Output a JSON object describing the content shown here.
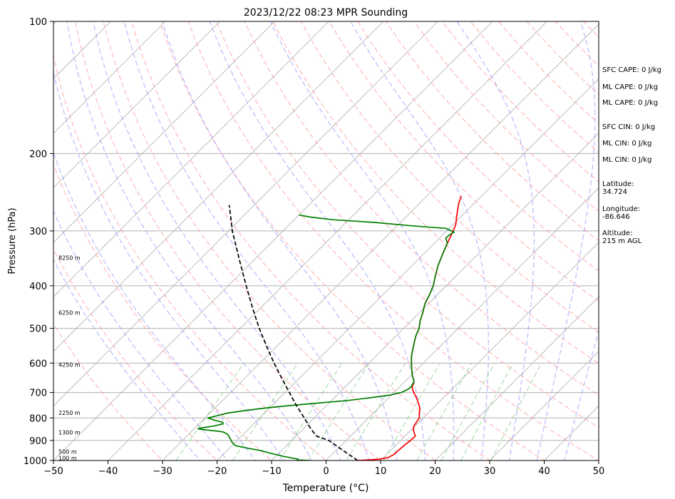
{
  "chart_data": {
    "type": "line",
    "subtype": "skew-t log-p",
    "title": "2023/12/22 08:23 MPR Sounding",
    "xlabel": "Temperature (°C)",
    "ylabel": "Pressure (hPa)",
    "xlim": [
      -50,
      50
    ],
    "ylim": [
      1000,
      100
    ],
    "y_scale": "log",
    "x_ticks": [
      -50,
      -40,
      -30,
      -20,
      -10,
      0,
      10,
      20,
      30,
      40,
      50
    ],
    "y_ticks": [
      100,
      200,
      300,
      400,
      500,
      600,
      700,
      800,
      900,
      1000
    ],
    "y_gridlines": [
      200,
      300,
      400,
      500,
      600,
      700,
      800,
      900
    ],
    "height_labels": [
      {
        "label": "100 m",
        "pressure": 987
      },
      {
        "label": "500 m",
        "pressure": 955
      },
      {
        "label": "1300 m",
        "pressure": 862
      },
      {
        "label": "2250 m",
        "pressure": 778
      },
      {
        "label": "4250 m",
        "pressure": 605
      },
      {
        "label": "6250 m",
        "pressure": 460
      },
      {
        "label": "8250 m",
        "pressure": 345
      }
    ],
    "series": [
      {
        "color": "#ff0000",
        "points": [
          [
            1000,
            5.8
          ],
          [
            997,
            7.5
          ],
          [
            993,
            9.5
          ],
          [
            985,
            10.8
          ],
          [
            970,
            11.3
          ],
          [
            950,
            11.4
          ],
          [
            920,
            11.6
          ],
          [
            900,
            11.8
          ],
          [
            880,
            11.9
          ],
          [
            865,
            11.1
          ],
          [
            850,
            10.3
          ],
          [
            835,
            9.8
          ],
          [
            815,
            9.5
          ],
          [
            800,
            9.3
          ],
          [
            780,
            8.4
          ],
          [
            760,
            7.6
          ],
          [
            740,
            6.4
          ],
          [
            720,
            5.1
          ],
          [
            700,
            3.6
          ],
          [
            690,
            2.9
          ],
          [
            680,
            2.3
          ],
          [
            660,
            1.6
          ],
          [
            640,
            0.2
          ],
          [
            620,
            -1.0
          ],
          [
            600,
            -2.2
          ],
          [
            580,
            -3.4
          ],
          [
            560,
            -4.4
          ],
          [
            540,
            -5.4
          ],
          [
            520,
            -6.4
          ],
          [
            500,
            -7.2
          ],
          [
            480,
            -8.4
          ],
          [
            460,
            -9.4
          ],
          [
            440,
            -10.6
          ],
          [
            420,
            -11.4
          ],
          [
            400,
            -12.4
          ],
          [
            380,
            -13.8
          ],
          [
            360,
            -15.2
          ],
          [
            340,
            -16.4
          ],
          [
            320,
            -17.6
          ],
          [
            300,
            -18.8
          ],
          [
            290,
            -19.5
          ],
          [
            280,
            -20.6
          ],
          [
            270,
            -21.7
          ],
          [
            260,
            -22.8
          ],
          [
            250,
            -23.7
          ]
        ]
      },
      {
        "color": "#008000",
        "points": [
          [
            1000,
            -3.1
          ],
          [
            997,
            -5.4
          ],
          [
            993,
            -5.4
          ],
          [
            980,
            -8.3
          ],
          [
            960,
            -12.0
          ],
          [
            950,
            -13.6
          ],
          [
            938,
            -16.5
          ],
          [
            925,
            -19.4
          ],
          [
            910,
            -20.5
          ],
          [
            895,
            -21.4
          ],
          [
            880,
            -22.3
          ],
          [
            868,
            -23.2
          ],
          [
            860,
            -24.3
          ],
          [
            850,
            -28.3
          ],
          [
            847,
            -29.3
          ],
          [
            842,
            -28.7
          ],
          [
            835,
            -27.0
          ],
          [
            825,
            -25.6
          ],
          [
            818,
            -26.0
          ],
          [
            810,
            -27.8
          ],
          [
            800,
            -29.5
          ],
          [
            790,
            -28.1
          ],
          [
            780,
            -26.8
          ],
          [
            770,
            -24.2
          ],
          [
            760,
            -21.0
          ],
          [
            750,
            -16.8
          ],
          [
            740,
            -12.0
          ],
          [
            730,
            -7.0
          ],
          [
            720,
            -3.6
          ],
          [
            710,
            -0.4
          ],
          [
            700,
            1.3
          ],
          [
            690,
            1.9
          ],
          [
            680,
            2.1
          ],
          [
            660,
            1.6
          ],
          [
            640,
            0.2
          ],
          [
            620,
            -1.0
          ],
          [
            600,
            -2.2
          ],
          [
            580,
            -3.4
          ],
          [
            560,
            -4.4
          ],
          [
            540,
            -5.4
          ],
          [
            520,
            -6.4
          ],
          [
            500,
            -7.2
          ],
          [
            480,
            -8.4
          ],
          [
            460,
            -9.4
          ],
          [
            440,
            -10.6
          ],
          [
            420,
            -11.4
          ],
          [
            400,
            -12.4
          ],
          [
            380,
            -13.8
          ],
          [
            360,
            -15.2
          ],
          [
            340,
            -16.4
          ],
          [
            320,
            -17.6
          ],
          [
            312,
            -18.8
          ],
          [
            307,
            -18.8
          ],
          [
            302,
            -18.4
          ],
          [
            296,
            -20.6
          ],
          [
            292,
            -27.5
          ],
          [
            287,
            -34.6
          ],
          [
            283,
            -42.8
          ],
          [
            279,
            -47.5
          ],
          [
            276,
            -50.0
          ]
        ]
      },
      {
        "color": "#000000",
        "dash": true,
        "points": [
          [
            1000,
            5.8
          ],
          [
            950,
            1.4
          ],
          [
            900,
            -3.2
          ],
          [
            880,
            -6.2
          ],
          [
            850,
            -8.4
          ],
          [
            800,
            -11.8
          ],
          [
            750,
            -15.5
          ],
          [
            700,
            -19.2
          ],
          [
            650,
            -23.2
          ],
          [
            600,
            -27.4
          ],
          [
            550,
            -31.8
          ],
          [
            500,
            -36.5
          ],
          [
            450,
            -41.4
          ],
          [
            400,
            -46.7
          ],
          [
            350,
            -52.6
          ],
          [
            300,
            -59.3
          ],
          [
            280,
            -62.0
          ],
          [
            262,
            -64.6
          ]
        ]
      }
    ],
    "stats": [
      "SFC CAPE: 0 J/kg",
      "ML CAPE: 0 J/kg",
      "ML CAPE: 0 J/kg",
      "SFC CIN: 0 J/kg",
      "ML CIN: 0 J/kg",
      "ML CIN: 0 J/kg",
      "Latitude:\n34.724",
      "Longitude:\n-86.646",
      "Altitude:\n215 m AGL"
    ],
    "colors": {
      "isotherm": "#b0b0b0",
      "dry_adiabat": "#ff9999",
      "moist_adiabat": "#9999ff",
      "mixing_ratio": "#7fcc7f",
      "grid": "#b0b0b0"
    }
  }
}
